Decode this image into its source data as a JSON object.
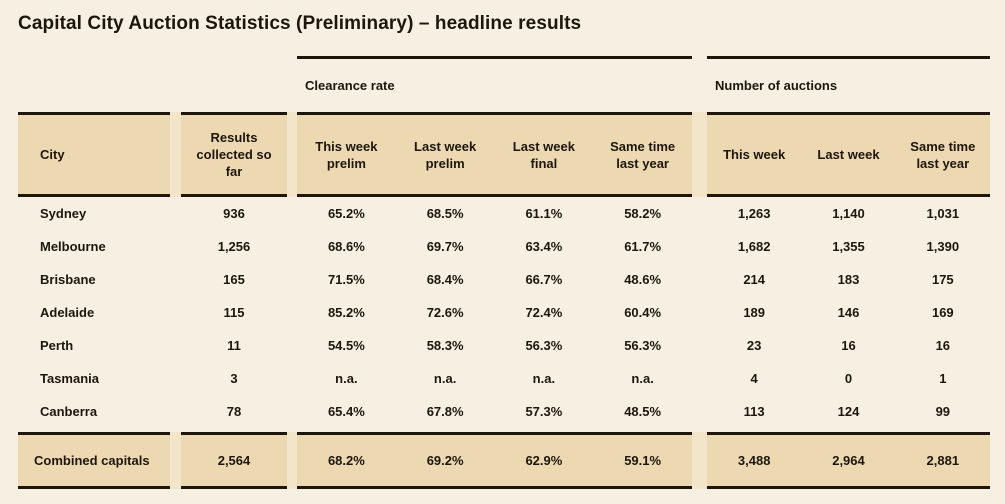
{
  "title": "Capital City Auction Statistics (Preliminary) – headline results",
  "colors": {
    "background": "#f7efe1",
    "band": "#ecd9b2",
    "ink": "#1e160b"
  },
  "table": {
    "group_headers": [
      "Clearance rate",
      "Number of auctions"
    ],
    "columns": {
      "city": "City",
      "results": "Results collected so far",
      "clearance": [
        "This week prelim",
        "Last week prelim",
        "Last week final",
        "Same time last year"
      ],
      "auctions": [
        "This week",
        "Last week",
        "Same time last year"
      ]
    },
    "rows": [
      {
        "city": "Sydney",
        "results": "936",
        "clearance": [
          "65.2%",
          "68.5%",
          "61.1%",
          "58.2%"
        ],
        "auctions": [
          "1,263",
          "1,140",
          "1,031"
        ]
      },
      {
        "city": "Melbourne",
        "results": "1,256",
        "clearance": [
          "68.6%",
          "69.7%",
          "63.4%",
          "61.7%"
        ],
        "auctions": [
          "1,682",
          "1,355",
          "1,390"
        ]
      },
      {
        "city": "Brisbane",
        "results": "165",
        "clearance": [
          "71.5%",
          "68.4%",
          "66.7%",
          "48.6%"
        ],
        "auctions": [
          "214",
          "183",
          "175"
        ]
      },
      {
        "city": "Adelaide",
        "results": "115",
        "clearance": [
          "85.2%",
          "72.6%",
          "72.4%",
          "60.4%"
        ],
        "auctions": [
          "189",
          "146",
          "169"
        ]
      },
      {
        "city": "Perth",
        "results": "11",
        "clearance": [
          "54.5%",
          "58.3%",
          "56.3%",
          "56.3%"
        ],
        "auctions": [
          "23",
          "16",
          "16"
        ]
      },
      {
        "city": "Tasmania",
        "results": "3",
        "clearance": [
          "n.a.",
          "n.a.",
          "n.a.",
          "n.a."
        ],
        "auctions": [
          "4",
          "0",
          "1"
        ]
      },
      {
        "city": "Canberra",
        "results": "78",
        "clearance": [
          "65.4%",
          "67.8%",
          "57.3%",
          "48.5%"
        ],
        "auctions": [
          "113",
          "124",
          "99"
        ]
      }
    ],
    "total_row": {
      "city": "Combined capitals",
      "results": "2,564",
      "clearance": [
        "68.2%",
        "69.2%",
        "62.9%",
        "59.1%"
      ],
      "auctions": [
        "3,488",
        "2,964",
        "2,881"
      ]
    }
  },
  "chart_data": {
    "type": "table",
    "title": "Capital City Auction Statistics (Preliminary) – headline results",
    "column_groups": [
      {
        "label": "",
        "columns": [
          "City",
          "Results collected so far"
        ]
      },
      {
        "label": "Clearance rate",
        "columns": [
          "This week prelim",
          "Last week prelim",
          "Last week final",
          "Same time last year"
        ]
      },
      {
        "label": "Number of auctions",
        "columns": [
          "This week",
          "Last week",
          "Same time last year"
        ]
      }
    ],
    "rows": [
      [
        "Sydney",
        936,
        "65.2%",
        "68.5%",
        "61.1%",
        "58.2%",
        1263,
        1140,
        1031
      ],
      [
        "Melbourne",
        1256,
        "68.6%",
        "69.7%",
        "63.4%",
        "61.7%",
        1682,
        1355,
        1390
      ],
      [
        "Brisbane",
        165,
        "71.5%",
        "68.4%",
        "66.7%",
        "48.6%",
        214,
        183,
        175
      ],
      [
        "Adelaide",
        115,
        "85.2%",
        "72.6%",
        "72.4%",
        "60.4%",
        189,
        146,
        169
      ],
      [
        "Perth",
        11,
        "54.5%",
        "58.3%",
        "56.3%",
        "56.3%",
        23,
        16,
        16
      ],
      [
        "Tasmania",
        3,
        "n.a.",
        "n.a.",
        "n.a.",
        "n.a.",
        4,
        0,
        1
      ],
      [
        "Canberra",
        78,
        "65.4%",
        "67.8%",
        "57.3%",
        "48.5%",
        113,
        124,
        99
      ]
    ],
    "total_row": [
      "Combined capitals",
      2564,
      "68.2%",
      "69.2%",
      "62.9%",
      "59.1%",
      3488,
      2964,
      2881
    ]
  }
}
